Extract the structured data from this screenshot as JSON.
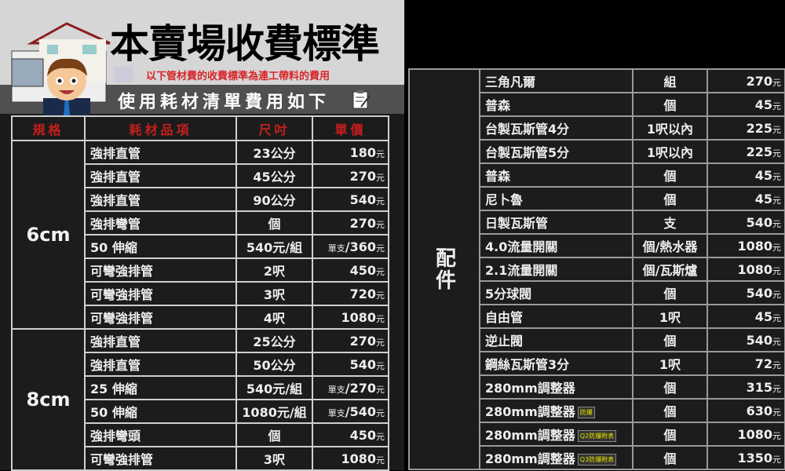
{
  "header": {
    "title": "本賣場收費標準",
    "subtitle": "以下管材費的收費標準為連工帶料的費用",
    "band_text": "使用耗材清單費用如下",
    "icon": "clipboard-icon",
    "illustration": "house-with-cartoon-man"
  },
  "colors": {
    "header_bg": "#d6d6d6",
    "band_bg": "#505050",
    "subtitle": "#d8262a",
    "column_header": "#c81e1e",
    "tag_text": "#e6e600"
  },
  "currency": "元",
  "left_table": {
    "columns": [
      "規格",
      "耗材品項",
      "尺吋",
      "單價"
    ],
    "groups": [
      {
        "spec": "6cm",
        "rows": [
          {
            "item": "強排直管",
            "size": "23公分",
            "price": "180",
            "price_note": ""
          },
          {
            "item": "強排直管",
            "size": "45公分",
            "price": "270",
            "price_note": ""
          },
          {
            "item": "強排直管",
            "size": "90公分",
            "price": "540",
            "price_note": ""
          },
          {
            "item": "強排彎管",
            "size": "個",
            "price": "270",
            "price_note": ""
          },
          {
            "item": "50 伸縮",
            "size": "540元/組",
            "price": "/360",
            "price_note": "單支"
          },
          {
            "item": "可彎強排管",
            "size": "2呎",
            "price": "450",
            "price_note": ""
          },
          {
            "item": "可彎強排管",
            "size": "3呎",
            "price": "720",
            "price_note": ""
          },
          {
            "item": "可彎強排管",
            "size": "4呎",
            "price": "1080",
            "price_note": ""
          }
        ]
      },
      {
        "spec": "8cm",
        "rows": [
          {
            "item": "強排直管",
            "size": "25公分",
            "price": "270",
            "price_note": ""
          },
          {
            "item": "強排直管",
            "size": "50公分",
            "price": "540",
            "price_note": ""
          },
          {
            "item": "25 伸縮",
            "size": "540元/組",
            "price": "/270",
            "price_note": "單支"
          },
          {
            "item": "50 伸縮",
            "size": "1080元/組",
            "price": "/540",
            "price_note": "單支"
          },
          {
            "item": "強排彎頭",
            "size": "個",
            "price": "450",
            "price_note": ""
          },
          {
            "item": "可彎強排管",
            "size": "3呎",
            "price": "1080",
            "price_note": ""
          }
        ]
      }
    ]
  },
  "right_table": {
    "category": "配件",
    "rows": [
      {
        "item": "三角凡爾",
        "tag": "",
        "unit": "組",
        "price": "270"
      },
      {
        "item": "普森",
        "tag": "",
        "unit": "個",
        "price": "45"
      },
      {
        "item": "台製瓦斯管4分",
        "tag": "",
        "unit": "1呎以內",
        "price": "225"
      },
      {
        "item": "台製瓦斯管5分",
        "tag": "",
        "unit": "1呎以內",
        "price": "225"
      },
      {
        "item": "普森",
        "tag": "",
        "unit": "個",
        "price": "45"
      },
      {
        "item": "尼卜魯",
        "tag": "",
        "unit": "個",
        "price": "45"
      },
      {
        "item": "日製瓦斯管",
        "tag": "",
        "unit": "支",
        "price": "540"
      },
      {
        "item": "4.0流量開關",
        "tag": "",
        "unit": "個/熱水器",
        "price": "1080"
      },
      {
        "item": "2.1流量開關",
        "tag": "",
        "unit": "個/瓦斯爐",
        "price": "1080"
      },
      {
        "item": "5分球閥",
        "tag": "",
        "unit": "個",
        "price": "540"
      },
      {
        "item": "自由管",
        "tag": "",
        "unit": "1呎",
        "price": "45"
      },
      {
        "item": "逆止閥",
        "tag": "",
        "unit": "個",
        "price": "540"
      },
      {
        "item": "鋼絲瓦斯管3分",
        "tag": "",
        "unit": "1呎",
        "price": "72"
      },
      {
        "item": "280mm調整器",
        "tag": "",
        "unit": "個",
        "price": "315"
      },
      {
        "item": "280mm調整器",
        "tag": "防爆",
        "unit": "個",
        "price": "630"
      },
      {
        "item": "280mm調整器",
        "tag": "Q2防爆附表",
        "unit": "個",
        "price": "1080"
      },
      {
        "item": "280mm調整器",
        "tag": "Q3防爆附表",
        "unit": "個",
        "price": "1350"
      }
    ]
  }
}
